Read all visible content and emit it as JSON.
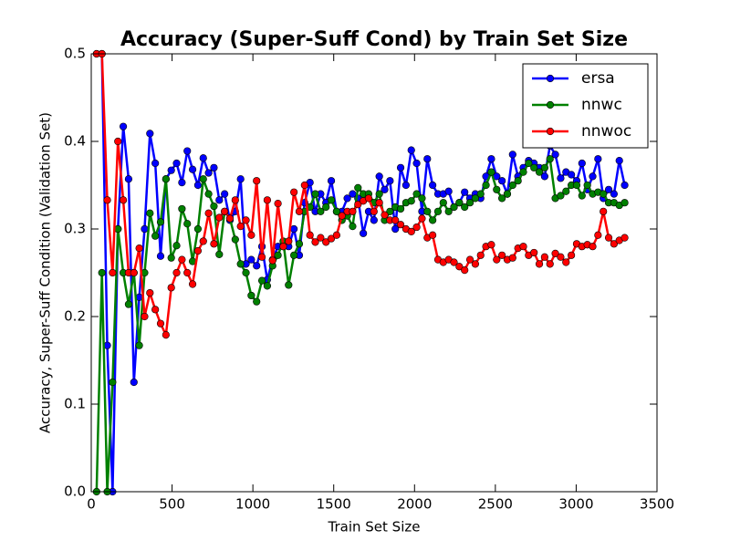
{
  "chart_data": {
    "type": "line",
    "title": "Accuracy (Super-Suff Cond) by Train Set Size",
    "x_label": "Train Set Size",
    "y_label": "Accuracy, Super-Suff Condition (Validation Set)",
    "x": [
      33,
      66,
      99,
      132,
      165,
      198,
      231,
      264,
      297,
      330,
      363,
      396,
      429,
      462,
      495,
      528,
      561,
      594,
      627,
      660,
      693,
      726,
      759,
      792,
      825,
      858,
      891,
      924,
      957,
      990,
      1023,
      1056,
      1089,
      1122,
      1155,
      1188,
      1221,
      1254,
      1287,
      1320,
      1353,
      1386,
      1419,
      1452,
      1485,
      1518,
      1551,
      1584,
      1617,
      1650,
      1683,
      1716,
      1749,
      1782,
      1815,
      1848,
      1881,
      1914,
      1947,
      1980,
      2013,
      2046,
      2079,
      2112,
      2145,
      2178,
      2211,
      2244,
      2277,
      2310,
      2343,
      2376,
      2409,
      2442,
      2475,
      2508,
      2541,
      2574,
      2607,
      2640,
      2673,
      2706,
      2739,
      2772,
      2805,
      2838,
      2871,
      2904,
      2937,
      2970,
      3003,
      3036,
      3069,
      3102,
      3135,
      3168,
      3201,
      3234,
      3267,
      3300
    ],
    "series": [
      {
        "name": "ersa",
        "color": "#0000ff",
        "values": [
          0.5,
          0.5,
          0.167,
          0.0,
          0.3,
          0.417,
          0.357,
          0.125,
          0.222,
          0.3,
          0.409,
          0.375,
          0.269,
          0.357,
          0.367,
          0.375,
          0.353,
          0.389,
          0.368,
          0.35,
          0.381,
          0.364,
          0.37,
          0.333,
          0.34,
          0.31,
          0.32,
          0.357,
          0.26,
          0.265,
          0.258,
          0.28,
          0.242,
          0.265,
          0.28,
          0.28,
          0.28,
          0.3,
          0.27,
          0.33,
          0.353,
          0.32,
          0.34,
          0.33,
          0.355,
          0.32,
          0.32,
          0.335,
          0.34,
          0.335,
          0.295,
          0.32,
          0.31,
          0.36,
          0.345,
          0.355,
          0.3,
          0.37,
          0.35,
          0.39,
          0.375,
          0.32,
          0.38,
          0.35,
          0.34,
          0.34,
          0.343,
          0.325,
          0.33,
          0.342,
          0.335,
          0.34,
          0.335,
          0.36,
          0.38,
          0.36,
          0.355,
          0.34,
          0.385,
          0.36,
          0.37,
          0.378,
          0.375,
          0.37,
          0.36,
          0.395,
          0.385,
          0.358,
          0.365,
          0.362,
          0.355,
          0.375,
          0.345,
          0.36,
          0.38,
          0.335,
          0.345,
          0.34,
          0.378,
          0.35
        ]
      },
      {
        "name": "nnwc",
        "color": "#008000",
        "values": [
          0.0,
          0.25,
          0.0,
          0.125,
          0.3,
          0.25,
          0.214,
          0.25,
          0.167,
          0.25,
          0.318,
          0.292,
          0.308,
          0.357,
          0.267,
          0.281,
          0.323,
          0.306,
          0.263,
          0.3,
          0.357,
          0.34,
          0.326,
          0.271,
          0.32,
          0.312,
          0.288,
          0.26,
          0.25,
          0.224,
          0.217,
          0.241,
          0.235,
          0.258,
          0.27,
          0.286,
          0.236,
          0.27,
          0.283,
          0.32,
          0.325,
          0.34,
          0.32,
          0.325,
          0.333,
          0.32,
          0.31,
          0.315,
          0.303,
          0.347,
          0.34,
          0.34,
          0.33,
          0.34,
          0.31,
          0.32,
          0.325,
          0.323,
          0.33,
          0.332,
          0.34,
          0.335,
          0.32,
          0.31,
          0.32,
          0.33,
          0.32,
          0.325,
          0.33,
          0.325,
          0.33,
          0.335,
          0.34,
          0.35,
          0.365,
          0.345,
          0.335,
          0.34,
          0.35,
          0.355,
          0.365,
          0.375,
          0.37,
          0.365,
          0.37,
          0.38,
          0.335,
          0.338,
          0.343,
          0.35,
          0.35,
          0.338,
          0.35,
          0.34,
          0.342,
          0.34,
          0.33,
          0.33,
          0.327,
          0.33
        ]
      },
      {
        "name": "nnwoc",
        "color": "#ff0000",
        "values": [
          0.5,
          0.5,
          0.333,
          0.25,
          0.4,
          0.333,
          0.25,
          0.25,
          0.278,
          0.2,
          0.227,
          0.208,
          0.192,
          0.179,
          0.233,
          0.25,
          0.265,
          0.25,
          0.237,
          0.275,
          0.286,
          0.318,
          0.283,
          0.313,
          0.32,
          0.312,
          0.333,
          0.303,
          0.31,
          0.293,
          0.355,
          0.268,
          0.333,
          0.264,
          0.329,
          0.28,
          0.286,
          0.342,
          0.32,
          0.35,
          0.293,
          0.285,
          0.29,
          0.285,
          0.289,
          0.293,
          0.315,
          0.32,
          0.32,
          0.328,
          0.332,
          0.335,
          0.32,
          0.33,
          0.316,
          0.31,
          0.31,
          0.305,
          0.3,
          0.297,
          0.302,
          0.312,
          0.29,
          0.293,
          0.265,
          0.262,
          0.265,
          0.262,
          0.257,
          0.253,
          0.265,
          0.26,
          0.27,
          0.28,
          0.282,
          0.265,
          0.27,
          0.265,
          0.267,
          0.278,
          0.28,
          0.27,
          0.273,
          0.26,
          0.268,
          0.26,
          0.272,
          0.268,
          0.262,
          0.27,
          0.283,
          0.28,
          0.282,
          0.28,
          0.293,
          0.32,
          0.29,
          0.283,
          0.287,
          0.29
        ]
      }
    ],
    "xlim": [
      0,
      3500
    ],
    "xticks": [
      0,
      500,
      1000,
      1500,
      2000,
      2500,
      3000,
      3500
    ],
    "ylim": [
      0,
      0.5
    ],
    "yticks": [
      {
        "value": 0,
        "label": "0.0"
      },
      0.1,
      0.2,
      0.3,
      0.4,
      0.5
    ],
    "legend": "upper right"
  }
}
